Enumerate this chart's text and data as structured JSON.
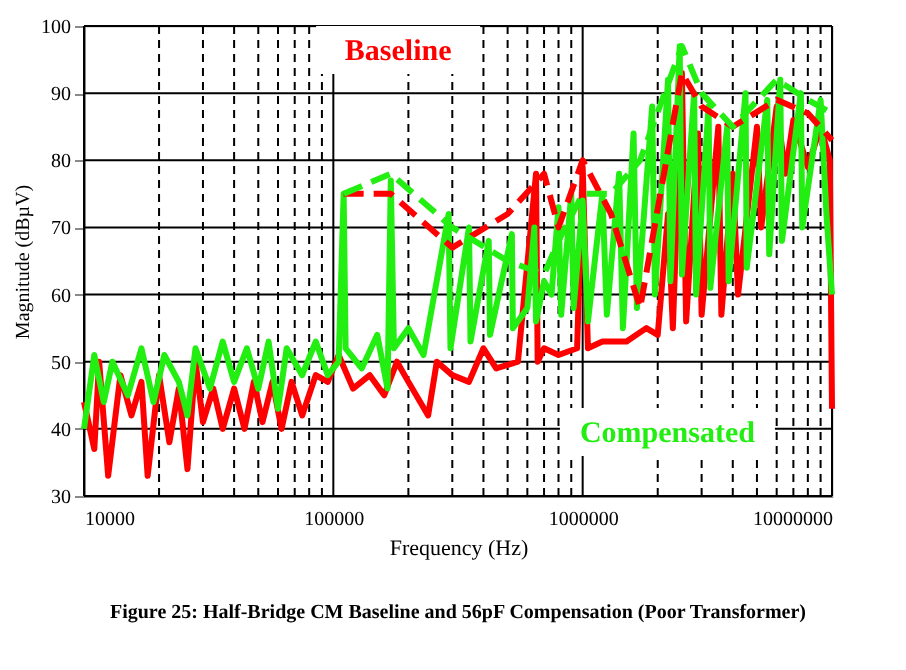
{
  "chart_data": {
    "type": "line",
    "title": "Figure 25: Half-Bridge CM Baseline and 56pF Compensation (Poor Transformer)",
    "xlabel": "Frequency (Hz)",
    "ylabel": "Magnitude (dBµV)",
    "log": "x",
    "grid": true,
    "legend": false,
    "marker": "none",
    "xlim": [
      10000,
      10000000
    ],
    "ylim": [
      30,
      100
    ],
    "xticks": [
      10000,
      {
        "value": 20000,
        "label": null
      },
      {
        "value": 30000,
        "label": null
      },
      {
        "value": 40000,
        "label": null
      },
      {
        "value": 50000,
        "label": null
      },
      {
        "value": 60000,
        "label": null
      },
      {
        "value": 70000,
        "label": null
      },
      {
        "value": 80000,
        "label": null
      },
      {
        "value": 90000,
        "label": null
      },
      100000,
      {
        "value": 200000,
        "label": null
      },
      {
        "value": 300000,
        "label": null
      },
      {
        "value": 400000,
        "label": null
      },
      {
        "value": 500000,
        "label": null
      },
      {
        "value": 600000,
        "label": null
      },
      {
        "value": 700000,
        "label": null
      },
      {
        "value": 800000,
        "label": null
      },
      {
        "value": 900000,
        "label": null
      },
      1000000,
      {
        "value": 2000000,
        "label": null
      },
      {
        "value": 3000000,
        "label": null
      },
      {
        "value": 4000000,
        "label": null
      },
      {
        "value": 5000000,
        "label": null
      },
      {
        "value": 6000000,
        "label": null
      },
      {
        "value": 7000000,
        "label": null
      },
      {
        "value": 8000000,
        "label": null
      },
      {
        "value": 9000000,
        "label": null
      },
      10000000
    ],
    "yticks": [
      30,
      40,
      50,
      60,
      70,
      80,
      90,
      100
    ],
    "series": [
      {
        "name": "Baseline",
        "color": "#ff0000",
        "line_style": "solid",
        "x": [
          10000,
          11000,
          11500,
          12500,
          14000,
          15500,
          17000,
          18000,
          20000,
          22000,
          24000,
          26000,
          28000,
          30000,
          33000,
          36000,
          40000,
          44000,
          48000,
          52000,
          57000,
          62000,
          68000,
          75000,
          85000,
          95000,
          105000,
          120000,
          140000,
          160000,
          180000,
          200000,
          240000,
          260000,
          300000,
          350000,
          400000,
          450000,
          550000,
          650000,
          660000,
          700000,
          800000,
          950000,
          1000000,
          1050000,
          1200000,
          1500000,
          1800000,
          2000000,
          2200000,
          2300000,
          2500000,
          2600000,
          2900000,
          3000000,
          3500000,
          3600000,
          4000000,
          4200000,
          5000000,
          5200000,
          6000000,
          6500000,
          7000000,
          8000000,
          9000000,
          9800000,
          10000000
        ],
        "values": [
          44,
          37,
          50,
          33,
          48,
          42,
          47,
          33,
          48,
          38,
          46,
          34,
          50,
          41,
          46,
          40,
          46,
          40,
          47,
          41,
          47,
          40,
          47,
          42,
          48,
          47,
          51,
          46,
          48,
          45,
          50,
          47,
          42,
          50,
          48,
          47,
          52,
          49,
          50,
          78,
          50,
          52,
          51,
          52,
          79,
          52,
          53,
          53,
          55,
          54,
          72,
          55,
          93,
          56,
          84,
          57,
          85,
          57,
          78,
          60,
          85,
          70,
          88,
          78,
          86,
          79,
          85,
          80,
          43
        ]
      },
      {
        "name": "Compensated",
        "color": "#22ee11",
        "line_style": "solid",
        "x": [
          10000,
          11000,
          12000,
          13000,
          15000,
          17000,
          19000,
          21000,
          24000,
          26000,
          28000,
          32000,
          36000,
          40000,
          45000,
          50000,
          55000,
          60000,
          65000,
          75000,
          85000,
          95000,
          105000,
          110000,
          112000,
          130000,
          150000,
          165000,
          170000,
          175000,
          200000,
          230000,
          290000,
          295000,
          350000,
          355000,
          420000,
          425000,
          520000,
          525000,
          600000,
          640000,
          650000,
          700000,
          750000,
          800000,
          820000,
          900000,
          920000,
          1000000,
          1050000,
          1200000,
          1250000,
          1400000,
          1450000,
          1600000,
          1650000,
          1900000,
          1950000,
          2200000,
          2250000,
          2450000,
          2500000,
          2800000,
          2850000,
          3200000,
          3250000,
          3800000,
          3850000,
          4500000,
          4550000,
          5500000,
          5600000,
          6200000,
          6300000,
          7500000,
          7600000,
          9000000,
          9500000,
          10000000
        ],
        "values": [
          40,
          51,
          44,
          50,
          45,
          52,
          44,
          51,
          47,
          42,
          52,
          46,
          53,
          47,
          52,
          46,
          53,
          43,
          52,
          48,
          53,
          48,
          50,
          75,
          52,
          49,
          54,
          46,
          77,
          52,
          55,
          51,
          72,
          52,
          70,
          53,
          68,
          54,
          69,
          55,
          58,
          70,
          56,
          62,
          60,
          73,
          57,
          75,
          58,
          74,
          56,
          75,
          57,
          78,
          55,
          84,
          58,
          88,
          60,
          92,
          62,
          97,
          63,
          90,
          60,
          88,
          61,
          85,
          62,
          90,
          64,
          89,
          66,
          92,
          68,
          90,
          70,
          89,
          72,
          60
        ]
      },
      {
        "color": "#ff0000",
        "line_style": "dashed",
        "x": [
          110000,
          170000,
          300000,
          500000,
          700000,
          800000,
          1000000,
          1300000,
          1700000,
          2500000,
          3000000,
          4000000,
          6000000,
          8000000,
          10000000
        ],
        "values": [
          75,
          75,
          67,
          72,
          78,
          70,
          80,
          72,
          58,
          93,
          88,
          85,
          89,
          87,
          83
        ]
      },
      {
        "color": "#22ee11",
        "line_style": "dashed",
        "x": [
          110000,
          170000,
          300000,
          500000,
          700000,
          800000,
          1000000,
          1300000,
          1700000,
          2500000,
          3000000,
          4000000,
          6000000,
          8000000,
          10000000
        ],
        "values": [
          75,
          78,
          70,
          65,
          63,
          68,
          75,
          75,
          80,
          97,
          90,
          85,
          92,
          89,
          87
        ]
      }
    ]
  }
}
